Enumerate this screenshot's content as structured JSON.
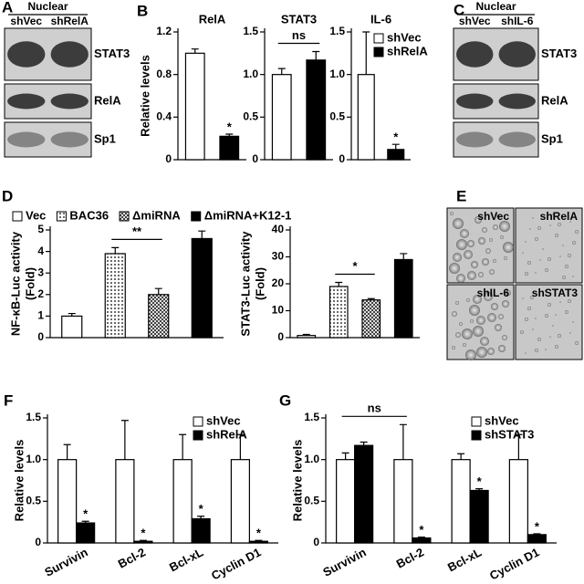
{
  "panel_labels": [
    "A",
    "B",
    "C",
    "D",
    "E",
    "F",
    "G"
  ],
  "blots": [
    {
      "header": "Nuclear",
      "lanes": [
        "shVec",
        "shRelA"
      ],
      "bands": [
        "STAT3",
        "RelA",
        "Sp1"
      ]
    },
    {
      "header": "Nuclear",
      "lanes": [
        "shVec",
        "shIL-6"
      ],
      "bands": [
        "STAT3",
        "RelA",
        "Sp1"
      ]
    }
  ],
  "micrographs": {
    "labels": [
      "shVec",
      "shRelA",
      "shIL-6",
      "shSTAT3"
    ]
  },
  "chart_data": [
    {
      "type": "bar",
      "title": "RelA",
      "y_label": [
        "Relative levels"
      ],
      "values": [
        1.0,
        0.22
      ],
      "errors": [
        0.04,
        0.02
      ],
      "fills": [
        "white",
        "black"
      ],
      "annotations": [
        null,
        "*"
      ],
      "ylim": [
        0,
        1.2
      ],
      "yticks": [
        0,
        0.4,
        0.8,
        1.2
      ]
    },
    {
      "type": "bar",
      "title": "STAT3",
      "values": [
        1.0,
        1.17
      ],
      "errors": [
        0.07,
        0.1
      ],
      "fills": [
        "white",
        "black"
      ],
      "bracket": {
        "text": "ns",
        "bars": [
          0,
          1
        ]
      },
      "ylim": [
        0,
        1.5
      ],
      "yticks": [
        0,
        0.5,
        {
          "value": 1,
          "label": "1.0"
        },
        1.5
      ]
    },
    {
      "type": "bar",
      "title": "IL-6",
      "series": [
        {
          "name": "shVec",
          "fill": "white",
          "values": [
            1.0
          ],
          "errors": [
            0.5
          ]
        },
        {
          "name": "shRelA",
          "fill": "black",
          "values": [
            0.12
          ],
          "errors": [
            0.06
          ],
          "annotations": [
            "*"
          ]
        }
      ],
      "ylim": [
        0,
        1.5
      ],
      "yticks": [
        0,
        0.5,
        {
          "value": 1,
          "label": "1.0"
        },
        1.5
      ]
    },
    {
      "type": "bar",
      "y_label": [
        "NF-κB-Luc activity",
        "(Fold)"
      ],
      "series": [
        {
          "name": "Vec",
          "fill": "white",
          "values": [
            1.0
          ],
          "errors": [
            0.12
          ]
        },
        {
          "name": "BAC36",
          "fill": "dots",
          "values": [
            3.9
          ],
          "errors": [
            0.28
          ]
        },
        {
          "name": "ΔmiRNA",
          "fill": "cross",
          "values": [
            2.0
          ],
          "errors": [
            0.28
          ]
        },
        {
          "name": "ΔmiRNA+K12-1",
          "fill": "black",
          "values": [
            4.6
          ],
          "errors": [
            0.35
          ]
        }
      ],
      "bracket": {
        "text": "**",
        "bars": [
          1,
          2
        ]
      },
      "ylim": [
        0,
        5
      ],
      "yticks": [
        0,
        1,
        2,
        3,
        4,
        5
      ]
    },
    {
      "type": "bar",
      "y_label": [
        "STAT3-Luc activity",
        "(Fold)"
      ],
      "values": [
        0.8,
        19,
        14,
        29
      ],
      "errors": [
        0.4,
        1.5,
        0.5,
        2.2
      ],
      "fills": [
        "white",
        "dots",
        "cross",
        "black"
      ],
      "bracket": {
        "text": "*",
        "bars": [
          1,
          2
        ]
      },
      "ylim": [
        0,
        40
      ],
      "yticks": [
        0,
        10,
        20,
        30,
        40
      ]
    },
    {
      "type": "bar",
      "y_label": [
        "Relative levels"
      ],
      "categories": [
        "Survivin",
        "Bcl-2",
        "Bcl-xL",
        "Cyclin D1"
      ],
      "series": [
        {
          "name": "shVec",
          "fill": "white",
          "values": [
            1.0,
            1.0,
            1.0,
            1.0
          ],
          "errors": [
            0.18,
            0.47,
            0.3,
            0.3
          ]
        },
        {
          "name": "shRelA",
          "fill": "black",
          "values": [
            0.24,
            0.02,
            0.29,
            0.02
          ],
          "errors": [
            0.02,
            0.01,
            0.03,
            0.01
          ],
          "annotations": [
            "*",
            "*",
            "*",
            "*"
          ]
        }
      ],
      "ylim": [
        0,
        1.5
      ],
      "yticks": [
        0,
        0.5,
        {
          "value": 1,
          "label": "1.0"
        },
        1.5
      ]
    },
    {
      "type": "bar",
      "y_label": [
        "Relative levels"
      ],
      "categories": [
        "Survivin",
        "Bcl-2",
        "Bcl-xL",
        "Cyclin D1"
      ],
      "series": [
        {
          "name": "shVec",
          "fill": "white",
          "values": [
            1.0,
            1.0,
            1.0,
            1.0
          ],
          "errors": [
            0.08,
            0.42,
            0.07,
            0.3
          ]
        },
        {
          "name": "shSTAT3",
          "fill": "black",
          "values": [
            1.17,
            0.06,
            0.63,
            0.1
          ],
          "errors": [
            0.04,
            0.01,
            0.02,
            0.01
          ],
          "annotations": [
            null,
            "*",
            "*",
            "*"
          ]
        }
      ],
      "bracket": {
        "text": "ns",
        "bars": [
          0,
          1
        ]
      },
      "ylim": [
        0,
        1.5
      ],
      "yticks": [
        0,
        0.5,
        {
          "value": 1,
          "label": "1.0"
        },
        1.5
      ]
    }
  ]
}
